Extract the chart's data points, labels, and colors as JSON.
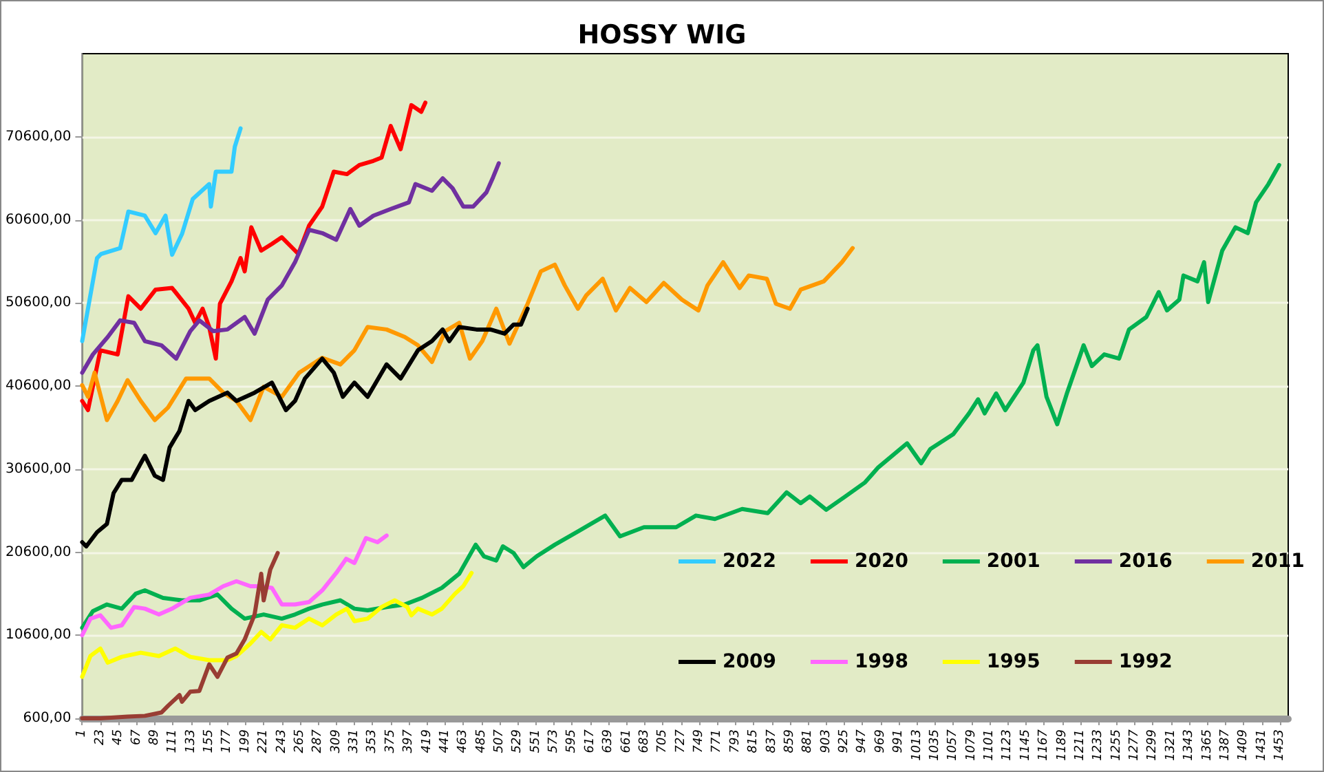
{
  "chart_data": {
    "type": "line",
    "title": "HOSSY WIG",
    "xlim": [
      1,
      1463
    ],
    "xticks": [
      1,
      23,
      45,
      67,
      89,
      111,
      133,
      155,
      177,
      199,
      221,
      243,
      265,
      287,
      309,
      331,
      353,
      375,
      397,
      419,
      441,
      463,
      485,
      507,
      529,
      551,
      573,
      595,
      617,
      639,
      661,
      683,
      705,
      727,
      749,
      771,
      793,
      815,
      837,
      859,
      881,
      903,
      925,
      947,
      969,
      991,
      1013,
      1035,
      1057,
      1079,
      1101,
      1123,
      1145,
      1167,
      1189,
      1211,
      1233,
      1255,
      1277,
      1299,
      1321,
      1343,
      1365,
      1387,
      1409,
      1431,
      1453
    ],
    "ylim": [
      600,
      80600
    ],
    "yticks": [
      {
        "value": 600,
        "label": "600,00"
      },
      {
        "value": 10600,
        "label": "10600,00"
      },
      {
        "value": 20600,
        "label": "20600,00"
      },
      {
        "value": 30600,
        "label": "30600,00"
      },
      {
        "value": 40600,
        "label": "40600,00"
      },
      {
        "value": 50600,
        "label": "50600,00"
      },
      {
        "value": 60600,
        "label": "60600,00"
      },
      {
        "value": 70600,
        "label": "70600,00"
      }
    ],
    "grid": "y",
    "legend": "bottom right",
    "marker": "none",
    "line_style": "solid",
    "series": [
      {
        "name": "2022",
        "color": "#33ccff",
        "x": [
          1,
          19,
          24,
          47,
          57,
          77,
          90,
          102,
          110,
          122,
          135,
          155,
          157,
          163,
          182,
          186,
          193
        ],
        "values": [
          46000,
          56000,
          56500,
          57200,
          61600,
          61100,
          59000,
          61100,
          56400,
          58900,
          63100,
          64900,
          62200,
          66400,
          66400,
          69400,
          71600
        ]
      },
      {
        "name": "2020",
        "color": "#ff0000",
        "x": [
          1,
          8,
          23,
          44,
          57,
          72,
          90,
          110,
          130,
          138,
          147,
          155,
          163,
          168,
          182,
          193,
          198,
          206,
          218,
          231,
          243,
          263,
          276,
          292,
          306,
          322,
          337,
          354,
          364,
          375,
          387,
          400,
          412,
          417
        ],
        "values": [
          38800,
          37700,
          44900,
          44400,
          51400,
          49900,
          52200,
          52400,
          49900,
          48200,
          49900,
          47700,
          43900,
          50500,
          53200,
          56000,
          54400,
          59700,
          56900,
          57700,
          58500,
          56500,
          59900,
          62200,
          66400,
          66100,
          67200,
          67700,
          68100,
          71900,
          69100,
          74400,
          73600,
          74700
        ]
      },
      {
        "name": "2001",
        "color": "#00b050",
        "x": [
          1,
          14,
          31,
          49,
          66,
          77,
          99,
          122,
          143,
          165,
          182,
          198,
          221,
          243,
          259,
          276,
          292,
          314,
          331,
          347,
          370,
          392,
          413,
          437,
          458,
          478,
          488,
          503,
          511,
          524,
          536,
          552,
          574,
          602,
          635,
          653,
          682,
          721,
          745,
          768,
          801,
          832,
          855,
          872,
          883,
          903,
          926,
          950,
          966,
          1001,
          1018,
          1029,
          1057,
          1076,
          1087,
          1095,
          1109,
          1120,
          1142,
          1154,
          1159,
          1170,
          1183,
          1195,
          1215,
          1225,
          1240,
          1258,
          1270,
          1291,
          1306,
          1316,
          1331,
          1336,
          1353,
          1361,
          1366,
          1383,
          1399,
          1414,
          1424,
          1439,
          1452
        ],
        "values": [
          11500,
          13500,
          14300,
          13800,
          15600,
          16000,
          15100,
          14800,
          14800,
          15500,
          13800,
          12600,
          13100,
          12600,
          13100,
          13800,
          14300,
          14800,
          13800,
          13600,
          14000,
          14300,
          15100,
          16300,
          18000,
          21500,
          20100,
          19600,
          21300,
          20500,
          18800,
          20100,
          21500,
          23100,
          25000,
          22500,
          23600,
          23600,
          25000,
          24600,
          25800,
          25300,
          27800,
          26500,
          27300,
          25700,
          27300,
          29000,
          30800,
          33700,
          31300,
          33000,
          34800,
          37300,
          39000,
          37300,
          39700,
          37700,
          41000,
          44900,
          45500,
          39300,
          36000,
          39800,
          45500,
          43000,
          44400,
          43900,
          47400,
          48900,
          51900,
          49700,
          51000,
          53900,
          53200,
          55500,
          50700,
          56900,
          59700,
          59000,
          62700,
          64900,
          67200
        ]
      },
      {
        "name": "2016",
        "color": "#7030a0",
        "x": [
          1,
          14,
          32,
          47,
          64,
          77,
          97,
          115,
          132,
          143,
          160,
          177,
          198,
          210,
          226,
          243,
          259,
          276,
          292,
          309,
          326,
          337,
          354,
          375,
          397,
          405,
          425,
          438,
          450,
          463,
          475,
          491,
          499,
          506
        ],
        "values": [
          42200,
          44400,
          46500,
          48500,
          48200,
          46000,
          45500,
          43900,
          47200,
          48500,
          47200,
          47400,
          48900,
          46900,
          51000,
          52700,
          55500,
          59400,
          59000,
          58200,
          61900,
          59900,
          61100,
          61900,
          62700,
          64900,
          64100,
          65600,
          64400,
          62200,
          62200,
          63900,
          65700,
          67400
        ]
      },
      {
        "name": "2011",
        "color": "#ff9900",
        "x": [
          1,
          8,
          16,
          31,
          44,
          56,
          72,
          89,
          105,
          127,
          155,
          172,
          188,
          205,
          221,
          243,
          264,
          292,
          314,
          331,
          347,
          370,
          392,
          408,
          425,
          441,
          458,
          471,
          486,
          503,
          519,
          541,
          557,
          574,
          586,
          602,
          612,
          632,
          648,
          665,
          685,
          706,
          728,
          748,
          759,
          778,
          798,
          809,
          831,
          842,
          859,
          872,
          900,
          922,
          935
        ],
        "values": [
          40700,
          39300,
          42200,
          36500,
          38800,
          41300,
          38800,
          36500,
          38000,
          41500,
          41500,
          39800,
          38800,
          36500,
          40500,
          39300,
          42200,
          44000,
          43200,
          44900,
          47700,
          47400,
          46500,
          45500,
          43500,
          47200,
          48200,
          43900,
          46000,
          49900,
          45700,
          50500,
          54400,
          55200,
          52700,
          49900,
          51500,
          53500,
          49700,
          52400,
          50700,
          53000,
          51000,
          49700,
          52700,
          55500,
          52400,
          53900,
          53500,
          50500,
          49900,
          52200,
          53200,
          55500,
          57200
        ]
      },
      {
        "name": "2009",
        "color": "#000000",
        "x": [
          1,
          6,
          19,
          31,
          39,
          49,
          61,
          72,
          77,
          89,
          99,
          107,
          119,
          130,
          138,
          155,
          177,
          188,
          210,
          231,
          248,
          259,
          271,
          292,
          306,
          317,
          331,
          347,
          370,
          387,
          408,
          425,
          438,
          446,
          458,
          479,
          496,
          513,
          524,
          533,
          541
        ],
        "values": [
          21800,
          21300,
          23000,
          24000,
          27700,
          29300,
          29300,
          31300,
          32200,
          29800,
          29300,
          33200,
          35200,
          38800,
          37700,
          38800,
          39800,
          38800,
          39800,
          41000,
          37700,
          38800,
          41500,
          43900,
          42200,
          39300,
          41000,
          39300,
          43200,
          41500,
          44900,
          46000,
          47400,
          46000,
          47700,
          47400,
          47400,
          46900,
          48000,
          48000,
          49900
        ]
      },
      {
        "name": "1998",
        "color": "#ff66ff",
        "x": [
          1,
          11,
          23,
          36,
          49,
          64,
          77,
          94,
          110,
          132,
          155,
          172,
          188,
          205,
          218,
          231,
          243,
          259,
          276,
          292,
          309,
          321,
          331,
          345,
          359,
          370
        ],
        "values": [
          10600,
          12600,
          13000,
          11500,
          11800,
          14000,
          13800,
          13100,
          13800,
          15100,
          15500,
          16500,
          17100,
          16500,
          16500,
          16300,
          14300,
          14300,
          14600,
          16000,
          18100,
          19800,
          19300,
          22300,
          21800,
          22600
        ]
      },
      {
        "name": "1995",
        "color": "#ffff00",
        "x": [
          1,
          11,
          23,
          32,
          49,
          72,
          94,
          114,
          132,
          155,
          177,
          188,
          205,
          218,
          229,
          243,
          259,
          276,
          292,
          309,
          322,
          331,
          347,
          364,
          380,
          395,
          400,
          408,
          425,
          437,
          453,
          463,
          473
        ],
        "values": [
          5600,
          8100,
          9000,
          7300,
          8000,
          8500,
          8100,
          9000,
          8000,
          7600,
          7600,
          8100,
          9600,
          11000,
          10100,
          11800,
          11500,
          12600,
          11800,
          13100,
          13800,
          12300,
          12600,
          14000,
          14800,
          14000,
          13000,
          13800,
          13100,
          13800,
          15600,
          16500,
          18100
        ]
      },
      {
        "name": "1992",
        "color": "#993d33",
        "x": [
          1,
          23,
          56,
          77,
          97,
          105,
          119,
          122,
          132,
          143,
          155,
          165,
          177,
          188,
          198,
          210,
          218,
          221,
          229,
          238
        ],
        "values": [
          600,
          600,
          800,
          900,
          1300,
          2100,
          3400,
          2600,
          3800,
          3900,
          7100,
          5600,
          7900,
          8400,
          10100,
          13100,
          18000,
          14800,
          18500,
          20500
        ]
      }
    ]
  }
}
